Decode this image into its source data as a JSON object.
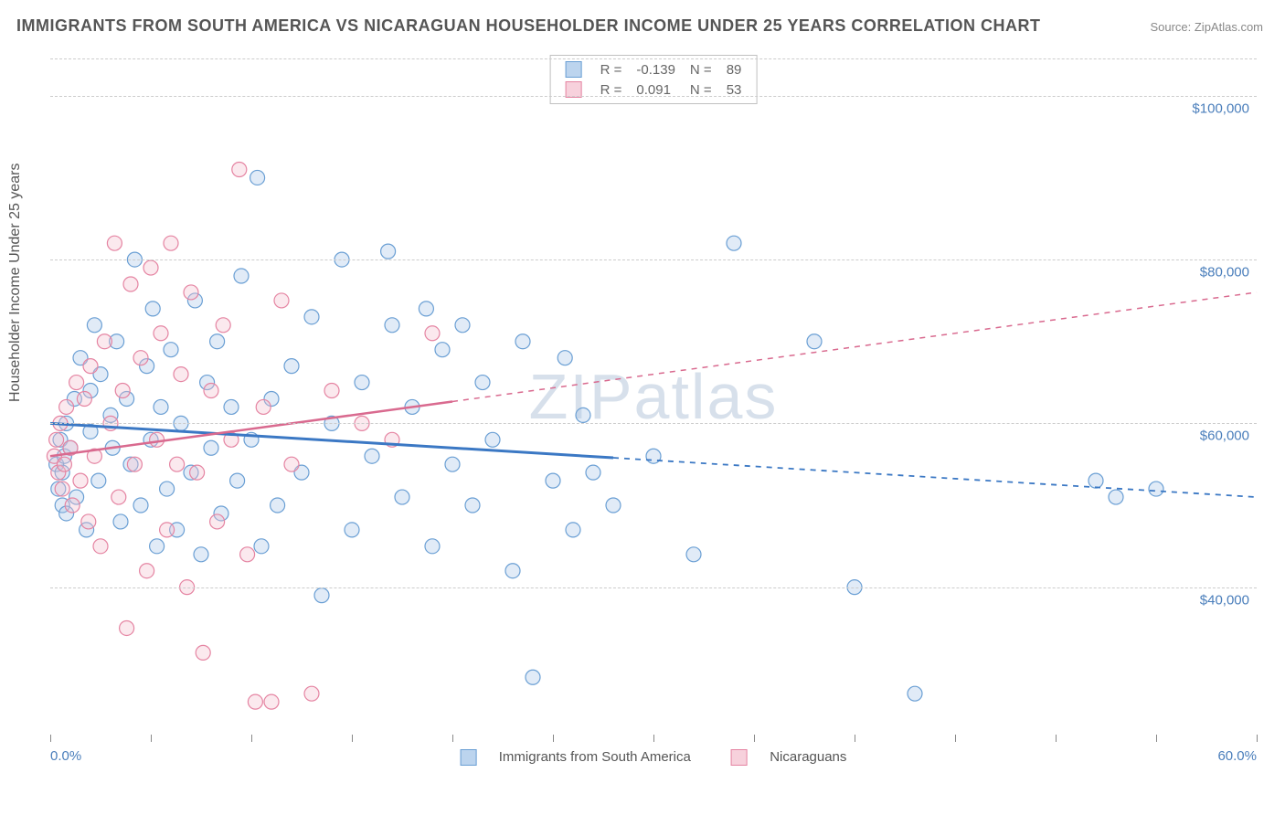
{
  "title": "IMMIGRANTS FROM SOUTH AMERICA VS NICARAGUAN HOUSEHOLDER INCOME UNDER 25 YEARS CORRELATION CHART",
  "source_label": "Source: ZipAtlas.com",
  "watermark": "ZIPatlas",
  "y_axis_label": "Householder Income Under 25 years",
  "chart": {
    "type": "scatter",
    "background_color": "#ffffff",
    "grid_color": "#cccccc",
    "xlim": [
      0.0,
      60.0
    ],
    "ylim": [
      22000,
      105000
    ],
    "x_unit": "%",
    "y_unit": "$",
    "x_tick_positions": [
      0,
      5,
      10,
      15,
      20,
      25,
      30,
      35,
      40,
      45,
      50,
      55,
      60
    ],
    "x_bounds": {
      "min_label": "0.0%",
      "max_label": "60.0%"
    },
    "y_ticks": [
      {
        "value": 40000,
        "label": "$40,000"
      },
      {
        "value": 60000,
        "label": "$60,000"
      },
      {
        "value": 80000,
        "label": "$80,000"
      },
      {
        "value": 100000,
        "label": "$100,000"
      }
    ],
    "marker_radius": 8,
    "marker_fill_opacity": 0.35,
    "marker_stroke_width": 1.2,
    "series": [
      {
        "name": "Immigrants from South America",
        "color_fill": "#a9c6e8",
        "color_stroke": "#6a9fd4",
        "legend_swatch_fill": "#bcd4ee",
        "legend_swatch_border": "#6a9fd4",
        "R_label": "R =",
        "R_value": "-0.139",
        "N_label": "N =",
        "N_value": "89",
        "trend": {
          "x1": 0,
          "y1": 60000,
          "x2": 60,
          "y2": 51000,
          "solid_until_x": 28,
          "color": "#3b78c4",
          "width": 3
        },
        "points": [
          [
            0.3,
            55000
          ],
          [
            0.4,
            52000
          ],
          [
            0.5,
            58000
          ],
          [
            0.6,
            50000
          ],
          [
            0.6,
            54000
          ],
          [
            0.7,
            56000
          ],
          [
            0.8,
            60000
          ],
          [
            0.8,
            49000
          ],
          [
            1.0,
            57000
          ],
          [
            1.2,
            63000
          ],
          [
            1.3,
            51000
          ],
          [
            1.5,
            68000
          ],
          [
            1.8,
            47000
          ],
          [
            2.0,
            64000
          ],
          [
            2.0,
            59000
          ],
          [
            2.2,
            72000
          ],
          [
            2.4,
            53000
          ],
          [
            2.5,
            66000
          ],
          [
            3.0,
            61000
          ],
          [
            3.1,
            57000
          ],
          [
            3.3,
            70000
          ],
          [
            3.5,
            48000
          ],
          [
            3.8,
            63000
          ],
          [
            4.0,
            55000
          ],
          [
            4.2,
            80000
          ],
          [
            4.5,
            50000
          ],
          [
            4.8,
            67000
          ],
          [
            5.0,
            58000
          ],
          [
            5.1,
            74000
          ],
          [
            5.3,
            45000
          ],
          [
            5.5,
            62000
          ],
          [
            5.8,
            52000
          ],
          [
            6.0,
            69000
          ],
          [
            6.3,
            47000
          ],
          [
            6.5,
            60000
          ],
          [
            7.0,
            54000
          ],
          [
            7.2,
            75000
          ],
          [
            7.5,
            44000
          ],
          [
            7.8,
            65000
          ],
          [
            8.0,
            57000
          ],
          [
            8.3,
            70000
          ],
          [
            8.5,
            49000
          ],
          [
            9.0,
            62000
          ],
          [
            9.3,
            53000
          ],
          [
            9.5,
            78000
          ],
          [
            10.0,
            58000
          ],
          [
            10.3,
            90000
          ],
          [
            10.5,
            45000
          ],
          [
            11.0,
            63000
          ],
          [
            11.3,
            50000
          ],
          [
            12.0,
            67000
          ],
          [
            12.5,
            54000
          ],
          [
            13.0,
            73000
          ],
          [
            13.5,
            39000
          ],
          [
            14.0,
            60000
          ],
          [
            14.5,
            80000
          ],
          [
            15.0,
            47000
          ],
          [
            15.5,
            65000
          ],
          [
            16.0,
            56000
          ],
          [
            16.8,
            81000
          ],
          [
            17.0,
            72000
          ],
          [
            17.5,
            51000
          ],
          [
            18.0,
            62000
          ],
          [
            18.7,
            74000
          ],
          [
            19.0,
            45000
          ],
          [
            19.5,
            69000
          ],
          [
            20.0,
            55000
          ],
          [
            20.5,
            72000
          ],
          [
            21.0,
            50000
          ],
          [
            21.5,
            65000
          ],
          [
            22.0,
            58000
          ],
          [
            23.0,
            42000
          ],
          [
            23.5,
            70000
          ],
          [
            24.0,
            29000
          ],
          [
            25.0,
            53000
          ],
          [
            25.6,
            68000
          ],
          [
            26.0,
            47000
          ],
          [
            26.5,
            61000
          ],
          [
            27.0,
            54000
          ],
          [
            28.0,
            50000
          ],
          [
            30.0,
            56000
          ],
          [
            32.0,
            44000
          ],
          [
            34.0,
            82000
          ],
          [
            38.0,
            70000
          ],
          [
            40.0,
            40000
          ],
          [
            43.0,
            27000
          ],
          [
            52.0,
            53000
          ],
          [
            53.0,
            51000
          ],
          [
            55.0,
            52000
          ]
        ]
      },
      {
        "name": "Nicaraguans",
        "color_fill": "#f4c0ce",
        "color_stroke": "#e584a2",
        "legend_swatch_fill": "#f7d1dc",
        "legend_swatch_border": "#e584a2",
        "R_label": "R =",
        "R_value": "0.091",
        "N_label": "N =",
        "N_value": "53",
        "trend": {
          "x1": 0,
          "y1": 56000,
          "x2": 60,
          "y2": 76000,
          "solid_until_x": 20,
          "color": "#d96a8f",
          "width": 2.5
        },
        "points": [
          [
            0.2,
            56000
          ],
          [
            0.3,
            58000
          ],
          [
            0.4,
            54000
          ],
          [
            0.5,
            60000
          ],
          [
            0.6,
            52000
          ],
          [
            0.7,
            55000
          ],
          [
            0.8,
            62000
          ],
          [
            1.0,
            57000
          ],
          [
            1.1,
            50000
          ],
          [
            1.3,
            65000
          ],
          [
            1.5,
            53000
          ],
          [
            1.7,
            63000
          ],
          [
            1.9,
            48000
          ],
          [
            2.0,
            67000
          ],
          [
            2.2,
            56000
          ],
          [
            2.5,
            45000
          ],
          [
            2.7,
            70000
          ],
          [
            3.0,
            60000
          ],
          [
            3.2,
            82000
          ],
          [
            3.4,
            51000
          ],
          [
            3.6,
            64000
          ],
          [
            3.8,
            35000
          ],
          [
            4.0,
            77000
          ],
          [
            4.2,
            55000
          ],
          [
            4.5,
            68000
          ],
          [
            4.8,
            42000
          ],
          [
            5.0,
            79000
          ],
          [
            5.3,
            58000
          ],
          [
            5.5,
            71000
          ],
          [
            5.8,
            47000
          ],
          [
            6.0,
            82000
          ],
          [
            6.3,
            55000
          ],
          [
            6.5,
            66000
          ],
          [
            6.8,
            40000
          ],
          [
            7.0,
            76000
          ],
          [
            7.3,
            54000
          ],
          [
            7.6,
            32000
          ],
          [
            8.0,
            64000
          ],
          [
            8.3,
            48000
          ],
          [
            8.6,
            72000
          ],
          [
            9.0,
            58000
          ],
          [
            9.4,
            91000
          ],
          [
            9.8,
            44000
          ],
          [
            10.2,
            26000
          ],
          [
            10.6,
            62000
          ],
          [
            11.0,
            26000
          ],
          [
            11.5,
            75000
          ],
          [
            12.0,
            55000
          ],
          [
            13.0,
            27000
          ],
          [
            14.0,
            64000
          ],
          [
            15.5,
            60000
          ],
          [
            17.0,
            58000
          ],
          [
            19.0,
            71000
          ]
        ]
      }
    ]
  },
  "legend_bottom": {
    "items": [
      {
        "label": "Immigrants from South America",
        "swatch_fill": "#bcd4ee",
        "swatch_border": "#6a9fd4"
      },
      {
        "label": "Nicaraguans",
        "swatch_fill": "#f7d1dc",
        "swatch_border": "#e584a2"
      }
    ]
  },
  "colors": {
    "title_text": "#555555",
    "axis_text": "#555555",
    "value_text": "#4a7ebb"
  }
}
